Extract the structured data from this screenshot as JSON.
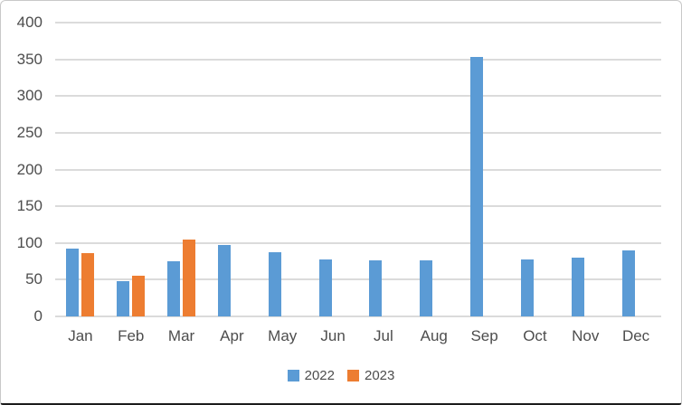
{
  "chart_data": {
    "type": "bar",
    "title": "",
    "xlabel": "",
    "ylabel": "",
    "categories": [
      "Jan",
      "Feb",
      "Mar",
      "Apr",
      "May",
      "Jun",
      "Jul",
      "Aug",
      "Sep",
      "Oct",
      "Nov",
      "Dec"
    ],
    "series": [
      {
        "name": "2022",
        "color": "#5B9BD5",
        "values": [
          92,
          48,
          75,
          97,
          88,
          77,
          76,
          76,
          353,
          78,
          80,
          90
        ]
      },
      {
        "name": "2023",
        "color": "#ED7D31",
        "values": [
          86,
          56,
          105,
          null,
          null,
          null,
          null,
          null,
          null,
          null,
          null,
          null
        ]
      }
    ],
    "ylim": [
      0,
      400
    ],
    "yticks": [
      0,
      50,
      100,
      150,
      200,
      250,
      300,
      350,
      400
    ],
    "grid": true,
    "legend_position": "bottom"
  },
  "legend": {
    "items": [
      {
        "label": "2022",
        "color": "#5B9BD5"
      },
      {
        "label": "2023",
        "color": "#ED7D31"
      }
    ]
  },
  "colors": {
    "gridline": "#dbdbdb",
    "axis_text": "#4d4d4d",
    "background": "#ffffff",
    "frame_border": "#c9c9c9",
    "frame_bottom_edge": "#1c1c1c"
  }
}
